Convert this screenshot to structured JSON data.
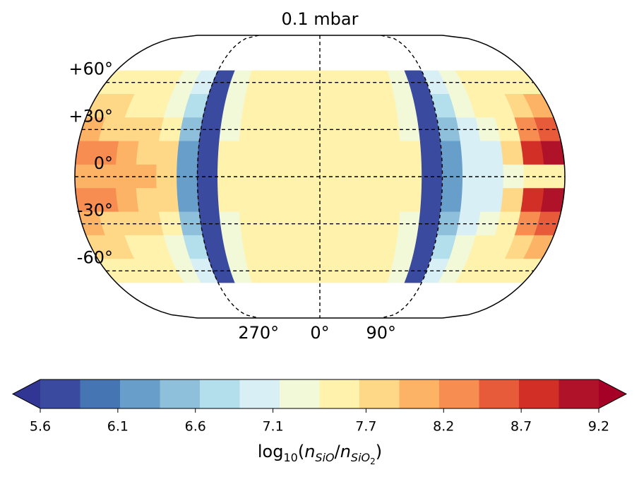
{
  "chart_data": {
    "type": "contour_map",
    "title": "0.1 mbar",
    "colorbar_label": "log10(nSiO/nSiO2)",
    "lons": [
      -172.5,
      -157.5,
      -142.5,
      -127.5,
      -112.5,
      -97.5,
      -82.5,
      -67.5,
      -52.5,
      -37.5,
      -22.5,
      -7.5,
      7.5,
      22.5,
      37.5,
      52.5,
      67.5,
      82.5,
      97.5,
      112.5,
      127.5,
      142.5,
      157.5,
      172.5
    ],
    "lats": [
      60,
      45,
      30,
      15,
      0,
      -15,
      -30,
      -45,
      -60
    ],
    "values": [
      [
        7.6,
        7.6,
        7.5,
        7.5,
        7.3,
        6.9,
        5.8,
        7.2,
        7.6,
        7.6,
        7.6,
        7.6,
        7.6,
        7.6,
        7.6,
        7.6,
        7.2,
        5.8,
        6.9,
        7.3,
        7.5,
        7.5,
        7.6,
        7.6
      ],
      [
        7.8,
        7.7,
        7.6,
        7.5,
        7.3,
        6.8,
        5.8,
        7.2,
        7.6,
        7.6,
        7.6,
        7.6,
        7.6,
        7.6,
        7.6,
        7.6,
        7.2,
        5.8,
        6.8,
        7.3,
        7.4,
        7.5,
        7.8,
        8.0
      ],
      [
        8.0,
        7.9,
        7.8,
        7.7,
        7.4,
        6.6,
        5.8,
        7.3,
        7.6,
        7.6,
        7.6,
        7.6,
        7.6,
        7.6,
        7.6,
        7.6,
        7.3,
        5.8,
        6.6,
        7.1,
        7.2,
        7.6,
        8.2,
        8.5
      ],
      [
        8.4,
        8.2,
        8.0,
        7.9,
        7.8,
        6.3,
        5.8,
        7.4,
        7.6,
        7.6,
        7.6,
        7.6,
        7.6,
        7.6,
        7.6,
        7.6,
        7.4,
        5.8,
        6.3,
        7.0,
        7.1,
        7.9,
        8.8,
        9.1
      ],
      [
        8.1,
        8.1,
        8.0,
        8.0,
        7.8,
        6.2,
        5.8,
        7.4,
        7.6,
        7.6,
        7.6,
        7.6,
        7.6,
        7.6,
        7.6,
        7.6,
        7.4,
        5.8,
        6.2,
        7.0,
        7.1,
        7.2,
        7.4,
        7.6
      ],
      [
        8.4,
        8.2,
        8.0,
        7.9,
        7.8,
        6.3,
        5.8,
        7.4,
        7.6,
        7.6,
        7.6,
        7.6,
        7.6,
        7.6,
        7.6,
        7.6,
        7.4,
        5.8,
        6.3,
        7.0,
        7.1,
        7.9,
        8.8,
        9.1
      ],
      [
        8.0,
        7.9,
        7.8,
        7.7,
        7.4,
        6.6,
        5.8,
        7.3,
        7.6,
        7.6,
        7.6,
        7.6,
        7.6,
        7.6,
        7.6,
        7.6,
        7.3,
        5.8,
        6.6,
        7.1,
        7.2,
        7.6,
        8.2,
        8.5
      ],
      [
        7.8,
        7.7,
        7.6,
        7.5,
        7.3,
        6.8,
        5.8,
        7.2,
        7.6,
        7.6,
        7.6,
        7.6,
        7.6,
        7.6,
        7.6,
        7.6,
        7.2,
        5.8,
        6.8,
        7.3,
        7.4,
        7.5,
        7.8,
        8.0
      ],
      [
        7.6,
        7.6,
        7.5,
        7.5,
        7.3,
        6.9,
        5.8,
        7.2,
        7.6,
        7.6,
        7.6,
        7.6,
        7.6,
        7.6,
        7.6,
        7.6,
        7.2,
        5.8,
        6.9,
        7.3,
        7.5,
        7.5,
        7.6,
        7.6
      ]
    ],
    "lat_ticks": [
      {
        "value": 60,
        "label": "+60°"
      },
      {
        "value": 30,
        "label": "+30°"
      },
      {
        "value": 0,
        "label": "0°"
      },
      {
        "value": -30,
        "label": "-30°"
      },
      {
        "value": -60,
        "label": "-60°"
      }
    ],
    "lon_ticks": [
      {
        "value": 270,
        "label": "270°"
      },
      {
        "value": 0,
        "label": "0°"
      },
      {
        "value": 90,
        "label": "90°"
      }
    ],
    "clim": [
      5.6,
      9.2
    ],
    "cticks": [
      5.6,
      6.1,
      6.6,
      7.1,
      7.7,
      8.2,
      8.7,
      9.2
    ],
    "colors": [
      "#3a4b9f",
      "#4675b4",
      "#679fca",
      "#8ebfdb",
      "#b3deeb",
      "#d9eff6",
      "#f1f9d9",
      "#fff2ac",
      "#fed887",
      "#fdb366",
      "#f88d52",
      "#e75b3b",
      "#d22f27",
      "#b0122a"
    ],
    "under_color": "#313695",
    "over_color": "#a50026"
  }
}
